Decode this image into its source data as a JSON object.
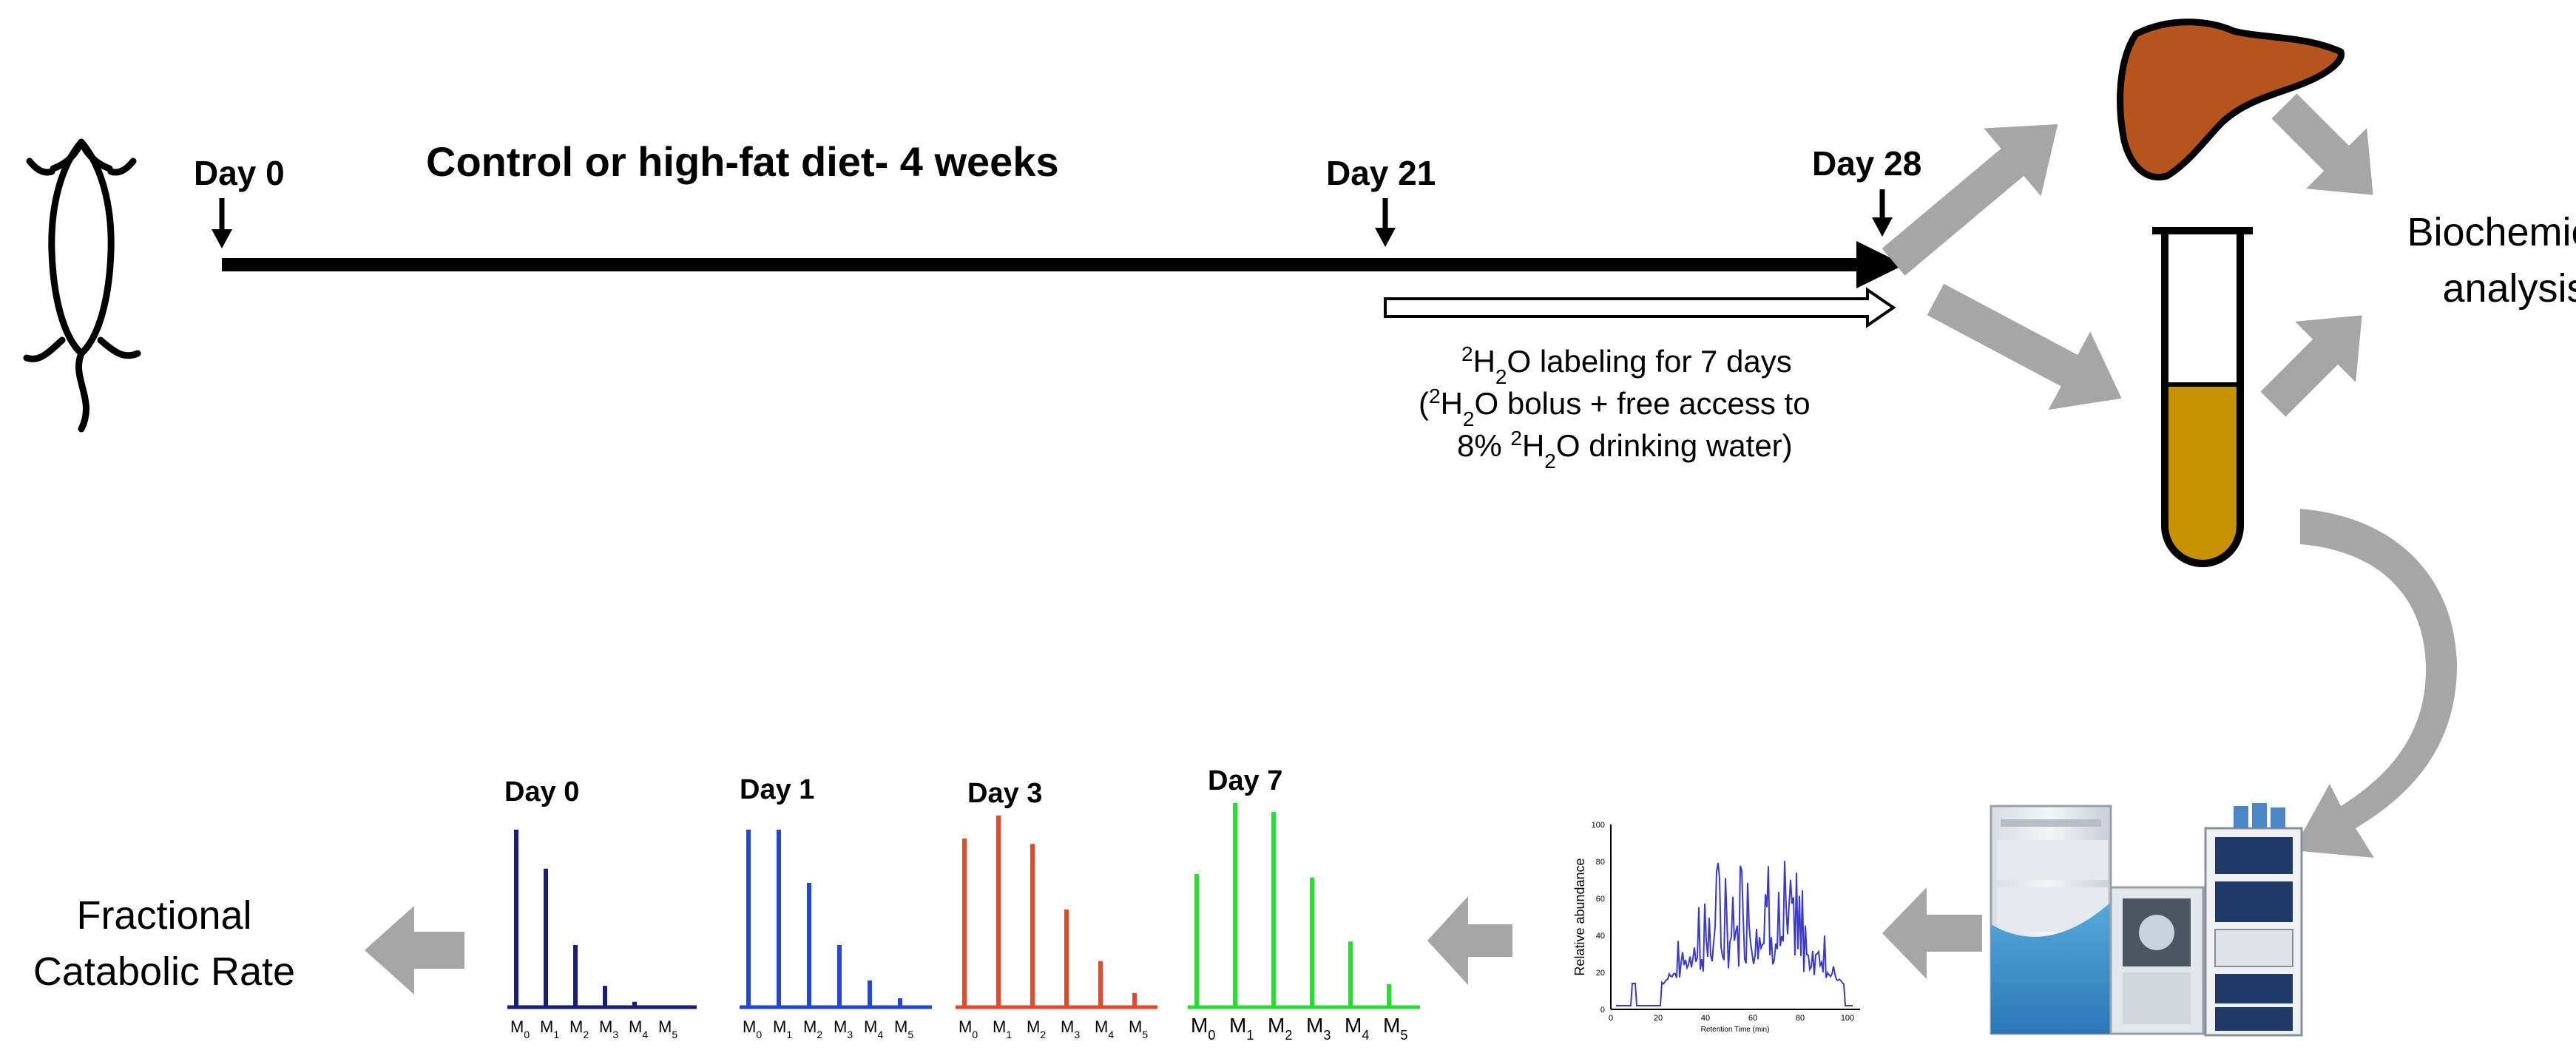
{
  "timeline": {
    "title": "Control or high-fat diet- 4 weeks",
    "day0": "Day 0",
    "day21": "Day 21",
    "day28": "Day 28",
    "labeling": {
      "sup": "2",
      "line1_pre": "H",
      "line1_sub": "2",
      "line1_post": "O labeling for 7 days",
      "line2_pre": "(",
      "line2_mid": "H",
      "line2_sub": "2",
      "line2_post": "O bolus + free access to",
      "line3_pre": "8% ",
      "line3_mid": "H",
      "line3_sub": "2",
      "line3_post": "O drinking water)"
    }
  },
  "right_panel": {
    "analysis_line1": "Biochemical",
    "analysis_line2": "analysis"
  },
  "chromatogram": {
    "ylabel": "Relative abundance",
    "xlabel": "Retention Time (min)",
    "yticks": [
      "100",
      "80",
      "60",
      "40",
      "20",
      "0"
    ],
    "xticks": [
      "0",
      "20",
      "40",
      "60",
      "80",
      "100"
    ]
  },
  "result": {
    "line1": "Fractional",
    "line2": "Catabolic Rate"
  },
  "colors": {
    "day0": "#1a1a7a",
    "day1": "#2446d4",
    "day3": "#e8472a",
    "day7": "#22e02c",
    "arrow_gray": "#a6a6a6",
    "liver": "#b5541c",
    "serum": "#c69200",
    "chrom": "#3a3ac8"
  },
  "chart_data": [
    {
      "type": "bar",
      "title": "Day 0",
      "categories": [
        "M0",
        "M1",
        "M2",
        "M3",
        "M4",
        "M5"
      ],
      "values": [
        100,
        78,
        35,
        12,
        3,
        1
      ]
    },
    {
      "type": "bar",
      "title": "Day 1",
      "categories": [
        "M0",
        "M1",
        "M2",
        "M3",
        "M4",
        "M5"
      ],
      "values": [
        100,
        100,
        70,
        35,
        15,
        5
      ]
    },
    {
      "type": "bar",
      "title": "Day 3",
      "categories": [
        "M0",
        "M1",
        "M2",
        "M3",
        "M4",
        "M5"
      ],
      "values": [
        95,
        108,
        92,
        55,
        26,
        8
      ]
    },
    {
      "type": "bar",
      "title": "Day 7",
      "categories": [
        "M0",
        "M1",
        "M2",
        "M3",
        "M4",
        "M5"
      ],
      "values": [
        75,
        115,
        110,
        73,
        37,
        13
      ]
    }
  ]
}
